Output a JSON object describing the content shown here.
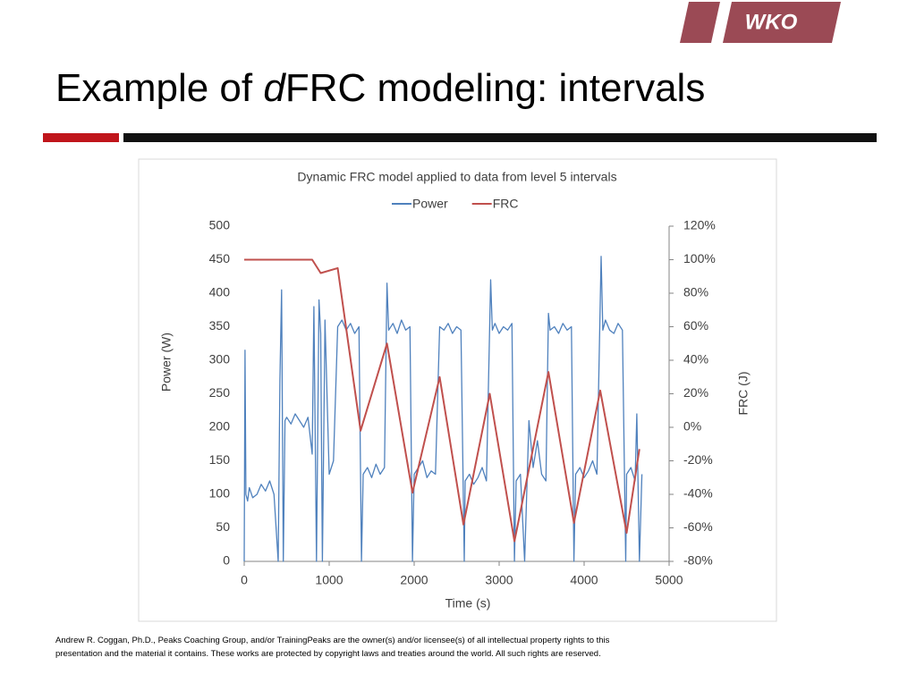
{
  "slide": {
    "logo": "WKO",
    "title_parts": [
      "Example of ",
      "d",
      "FRC modeling: intervals"
    ],
    "footer": [
      "Andrew R. Coggan, Ph.D., Peaks Coaching Group, and/or TrainingPeaks are the owner(s) and/or licensee(s) of all intellectual property rights to this",
      "presentation and the material it contains. These works are protected by copyright laws and treaties around the world. All such rights are reserved."
    ]
  },
  "chart_data": {
    "type": "line",
    "title": "Dynamic FRC model applied to data from level 5 intervals",
    "x_label": "Time (s)",
    "y_label": "Power (W)",
    "y2_label": "FRC (J)",
    "xlim": [
      0,
      5000
    ],
    "xticks": [
      0,
      1000,
      2000,
      3000,
      4000,
      5000
    ],
    "ylim": [
      0,
      500
    ],
    "yticks": [
      0,
      50,
      100,
      150,
      200,
      250,
      300,
      350,
      400,
      450,
      500
    ],
    "y2lim": [
      -80,
      120
    ],
    "y2ticks": [
      {
        "value": -80,
        "label": "-80%"
      },
      {
        "value": -60,
        "label": "-60%"
      },
      {
        "value": -40,
        "label": "-40%"
      },
      {
        "value": -20,
        "label": "-20%"
      },
      {
        "value": 0,
        "label": "0%"
      },
      {
        "value": 20,
        "label": "20%"
      },
      {
        "value": 40,
        "label": "40%"
      },
      {
        "value": 60,
        "label": "60%"
      },
      {
        "value": 80,
        "label": "80%"
      },
      {
        "value": 100,
        "label": "100%"
      },
      {
        "value": 120,
        "label": "120%"
      }
    ],
    "legend": "top",
    "series": [
      {
        "name": "Power",
        "color": "#4f81bd",
        "x": [
          0,
          10,
          20,
          40,
          60,
          100,
          150,
          200,
          250,
          300,
          350,
          400,
          420,
          440,
          460,
          480,
          500,
          550,
          600,
          650,
          700,
          750,
          800,
          820,
          850,
          880,
          900,
          920,
          950,
          1000,
          1050,
          1100,
          1150,
          1200,
          1250,
          1300,
          1350,
          1380,
          1400,
          1450,
          1500,
          1550,
          1600,
          1650,
          1680,
          1700,
          1750,
          1800,
          1850,
          1900,
          1950,
          1980,
          2000,
          2050,
          2100,
          2150,
          2200,
          2250,
          2300,
          2350,
          2400,
          2450,
          2500,
          2550,
          2590,
          2600,
          2650,
          2700,
          2750,
          2800,
          2850,
          2900,
          2920,
          2950,
          3000,
          3050,
          3100,
          3150,
          3180,
          3200,
          3250,
          3300,
          3350,
          3400,
          3450,
          3500,
          3550,
          3580,
          3600,
          3650,
          3700,
          3750,
          3800,
          3850,
          3880,
          3900,
          3950,
          4000,
          4050,
          4100,
          4150,
          4200,
          4220,
          4250,
          4300,
          4350,
          4400,
          4450,
          4490,
          4500,
          4550,
          4600,
          4620,
          4650,
          4680
        ],
        "values": [
          0,
          315,
          100,
          90,
          110,
          95,
          100,
          115,
          105,
          120,
          100,
          0,
          270,
          405,
          0,
          210,
          215,
          205,
          220,
          210,
          200,
          215,
          160,
          380,
          0,
          390,
          340,
          0,
          360,
          130,
          150,
          350,
          360,
          345,
          355,
          340,
          350,
          0,
          130,
          140,
          125,
          145,
          130,
          140,
          415,
          345,
          355,
          340,
          360,
          345,
          350,
          0,
          130,
          140,
          150,
          125,
          135,
          130,
          350,
          345,
          355,
          340,
          350,
          345,
          0,
          120,
          130,
          115,
          125,
          140,
          120,
          420,
          345,
          355,
          340,
          350,
          345,
          355,
          0,
          120,
          130,
          0,
          210,
          140,
          180,
          130,
          120,
          370,
          345,
          350,
          340,
          355,
          345,
          350,
          0,
          130,
          140,
          125,
          135,
          150,
          130,
          455,
          345,
          360,
          345,
          340,
          355,
          345,
          0,
          130,
          140,
          120,
          220,
          0,
          130
        ]
      },
      {
        "name": "FRC",
        "color": "#c0504d",
        "axis": "y2",
        "x": [
          0,
          800,
          900,
          1100,
          1370,
          1680,
          1980,
          2300,
          2580,
          2890,
          3180,
          3580,
          3880,
          4190,
          4500,
          4650
        ],
        "values": [
          100,
          100,
          92,
          95,
          -2,
          50,
          -39,
          30,
          -58,
          20,
          -68,
          33,
          -57,
          22,
          -63,
          -13
        ]
      }
    ]
  }
}
